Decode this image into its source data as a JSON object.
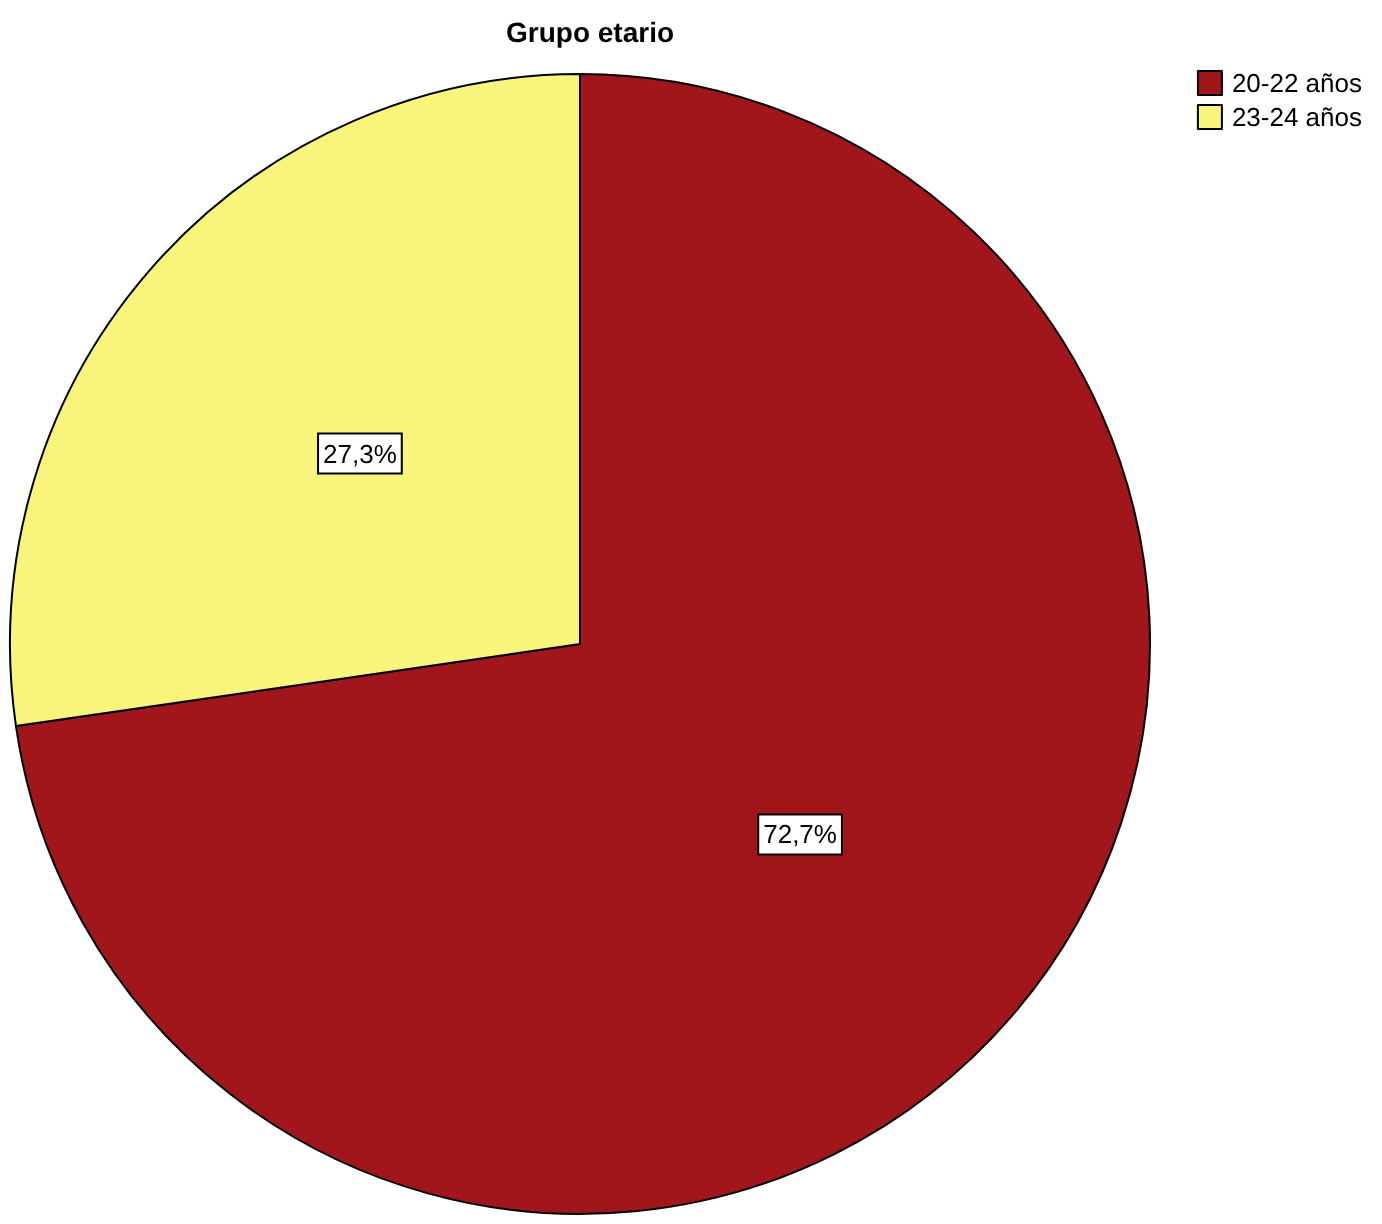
{
  "chart_data": {
    "type": "pie",
    "title": "Grupo etario",
    "categories": [
      "20-22 años",
      "23-24 años"
    ],
    "values": [
      72.7,
      27.3
    ],
    "colors": [
      "#a0161a",
      "#f9f57c"
    ],
    "value_labels": [
      "72,7%",
      "27,3%"
    ],
    "legend": "top right"
  }
}
